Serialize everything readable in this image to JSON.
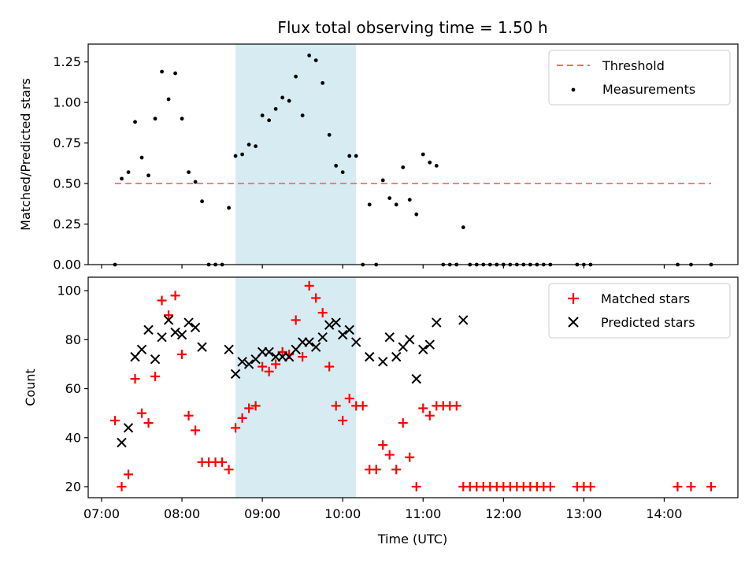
{
  "chart_data": [
    {
      "type": "scatter",
      "title": "Flux total observing time = 1.50 h",
      "xlabel": "",
      "ylabel": "Matched/Predicted stars",
      "ylim": [
        0,
        1.36
      ],
      "yticks": [
        0.0,
        0.25,
        0.5,
        0.75,
        1.0,
        1.25
      ],
      "ytick_labels": [
        "0.00",
        "0.25",
        "0.50",
        "0.75",
        "1.00",
        "1.25"
      ],
      "legend_position": "top-right",
      "shaded_region": {
        "x_start": "08:40",
        "x_end": "10:10",
        "color": "#add8e6"
      },
      "threshold": {
        "name": "Threshold",
        "value": 0.5,
        "x_start": "07:10",
        "x_end": "14:35",
        "color": "#ff6666"
      },
      "series": [
        {
          "name": "Measurements",
          "color": "#000000",
          "points": [
            [
              "07:10",
              0.0
            ],
            [
              "07:15",
              0.53
            ],
            [
              "07:20",
              0.57
            ],
            [
              "07:25",
              0.88
            ],
            [
              "07:30",
              0.66
            ],
            [
              "07:35",
              0.55
            ],
            [
              "07:40",
              0.9
            ],
            [
              "07:45",
              1.19
            ],
            [
              "07:50",
              1.02
            ],
            [
              "07:55",
              1.18
            ],
            [
              "08:00",
              0.9
            ],
            [
              "08:05",
              0.57
            ],
            [
              "08:10",
              0.51
            ],
            [
              "08:15",
              0.39
            ],
            [
              "08:20",
              0.0
            ],
            [
              "08:25",
              0.0
            ],
            [
              "08:30",
              0.0
            ],
            [
              "08:35",
              0.35
            ],
            [
              "08:40",
              0.67
            ],
            [
              "08:45",
              0.68
            ],
            [
              "08:50",
              0.74
            ],
            [
              "08:55",
              0.73
            ],
            [
              "09:00",
              0.92
            ],
            [
              "09:05",
              0.89
            ],
            [
              "09:10",
              0.96
            ],
            [
              "09:15",
              1.03
            ],
            [
              "09:20",
              1.01
            ],
            [
              "09:25",
              1.16
            ],
            [
              "09:30",
              0.92
            ],
            [
              "09:35",
              1.29
            ],
            [
              "09:40",
              1.26
            ],
            [
              "09:45",
              1.12
            ],
            [
              "09:50",
              0.8
            ],
            [
              "09:55",
              0.61
            ],
            [
              "10:00",
              0.57
            ],
            [
              "10:05",
              0.67
            ],
            [
              "10:10",
              0.67
            ],
            [
              "10:15",
              0.0
            ],
            [
              "10:20",
              0.37
            ],
            [
              "10:25",
              0.0
            ],
            [
              "10:30",
              0.52
            ],
            [
              "10:35",
              0.41
            ],
            [
              "10:40",
              0.37
            ],
            [
              "10:45",
              0.6
            ],
            [
              "10:50",
              0.4
            ],
            [
              "10:55",
              0.31
            ],
            [
              "11:00",
              0.68
            ],
            [
              "11:05",
              0.63
            ],
            [
              "11:10",
              0.61
            ],
            [
              "11:15",
              0.0
            ],
            [
              "11:20",
              0.0
            ],
            [
              "11:25",
              0.0
            ],
            [
              "11:30",
              0.23
            ],
            [
              "11:35",
              0.0
            ],
            [
              "11:40",
              0.0
            ],
            [
              "11:45",
              0.0
            ],
            [
              "11:50",
              0.0
            ],
            [
              "11:55",
              0.0
            ],
            [
              "12:00",
              0.0
            ],
            [
              "12:05",
              0.0
            ],
            [
              "12:10",
              0.0
            ],
            [
              "12:15",
              0.0
            ],
            [
              "12:20",
              0.0
            ],
            [
              "12:25",
              0.0
            ],
            [
              "12:30",
              0.0
            ],
            [
              "12:35",
              0.0
            ],
            [
              "12:55",
              0.0
            ],
            [
              "13:00",
              0.0
            ],
            [
              "13:05",
              0.0
            ],
            [
              "14:10",
              0.0
            ],
            [
              "14:20",
              0.0
            ],
            [
              "14:35",
              0.0
            ]
          ]
        }
      ]
    },
    {
      "type": "scatter",
      "title": "",
      "xlabel": "Time (UTC)",
      "ylabel": "Count",
      "ylim": [
        15.5,
        105.5
      ],
      "yticks": [
        20,
        40,
        60,
        80,
        100
      ],
      "ytick_labels": [
        "20",
        "40",
        "60",
        "80",
        "100"
      ],
      "xlim": [
        "06:50",
        "14:55"
      ],
      "xticks": [
        "07:00",
        "08:00",
        "09:00",
        "10:00",
        "11:00",
        "12:00",
        "13:00",
        "14:00"
      ],
      "legend_position": "top-right",
      "shaded_region": {
        "x_start": "08:40",
        "x_end": "10:10",
        "color": "#add8e6"
      },
      "series": [
        {
          "name": "Matched stars",
          "color": "#ff0000",
          "marker": "plus",
          "points": [
            [
              "07:10",
              47
            ],
            [
              "07:15",
              20
            ],
            [
              "07:20",
              25
            ],
            [
              "07:25",
              64
            ],
            [
              "07:30",
              50
            ],
            [
              "07:35",
              46
            ],
            [
              "07:40",
              65
            ],
            [
              "07:45",
              96
            ],
            [
              "07:50",
              90
            ],
            [
              "07:55",
              98
            ],
            [
              "08:00",
              74
            ],
            [
              "08:05",
              49
            ],
            [
              "08:10",
              43
            ],
            [
              "08:15",
              30
            ],
            [
              "08:20",
              30
            ],
            [
              "08:25",
              30
            ],
            [
              "08:30",
              30
            ],
            [
              "08:35",
              27
            ],
            [
              "08:40",
              44
            ],
            [
              "08:45",
              48
            ],
            [
              "08:50",
              52
            ],
            [
              "08:55",
              53
            ],
            [
              "09:00",
              69
            ],
            [
              "09:05",
              67
            ],
            [
              "09:10",
              70
            ],
            [
              "09:15",
              75
            ],
            [
              "09:20",
              74
            ],
            [
              "09:25",
              88
            ],
            [
              "09:30",
              73
            ],
            [
              "09:35",
              102
            ],
            [
              "09:40",
              97
            ],
            [
              "09:45",
              91
            ],
            [
              "09:50",
              69
            ],
            [
              "09:55",
              53
            ],
            [
              "10:00",
              47
            ],
            [
              "10:05",
              56
            ],
            [
              "10:10",
              53
            ],
            [
              "10:15",
              53
            ],
            [
              "10:20",
              27
            ],
            [
              "10:25",
              27
            ],
            [
              "10:30",
              37
            ],
            [
              "10:35",
              33
            ],
            [
              "10:40",
              27
            ],
            [
              "10:45",
              46
            ],
            [
              "10:50",
              32
            ],
            [
              "10:55",
              20
            ],
            [
              "11:00",
              52
            ],
            [
              "11:05",
              49
            ],
            [
              "11:10",
              53
            ],
            [
              "11:15",
              53
            ],
            [
              "11:20",
              53
            ],
            [
              "11:25",
              53
            ],
            [
              "11:30",
              20
            ],
            [
              "11:35",
              20
            ],
            [
              "11:40",
              20
            ],
            [
              "11:45",
              20
            ],
            [
              "11:50",
              20
            ],
            [
              "11:55",
              20
            ],
            [
              "12:00",
              20
            ],
            [
              "12:05",
              20
            ],
            [
              "12:10",
              20
            ],
            [
              "12:15",
              20
            ],
            [
              "12:20",
              20
            ],
            [
              "12:25",
              20
            ],
            [
              "12:30",
              20
            ],
            [
              "12:35",
              20
            ],
            [
              "12:55",
              20
            ],
            [
              "13:00",
              20
            ],
            [
              "13:05",
              20
            ],
            [
              "14:10",
              20
            ],
            [
              "14:20",
              20
            ],
            [
              "14:35",
              20
            ]
          ]
        },
        {
          "name": "Predicted stars",
          "color": "#000000",
          "marker": "x",
          "points": [
            [
              "07:15",
              38
            ],
            [
              "07:20",
              44
            ],
            [
              "07:25",
              73
            ],
            [
              "07:30",
              76
            ],
            [
              "07:35",
              84
            ],
            [
              "07:40",
              72
            ],
            [
              "07:45",
              81
            ],
            [
              "07:50",
              88
            ],
            [
              "07:55",
              83
            ],
            [
              "08:00",
              82
            ],
            [
              "08:05",
              87
            ],
            [
              "08:10",
              85
            ],
            [
              "08:15",
              77
            ],
            [
              "08:35",
              76
            ],
            [
              "08:40",
              66
            ],
            [
              "08:45",
              71
            ],
            [
              "08:50",
              70
            ],
            [
              "08:55",
              72
            ],
            [
              "09:00",
              75
            ],
            [
              "09:05",
              75
            ],
            [
              "09:10",
              73
            ],
            [
              "09:15",
              73
            ],
            [
              "09:20",
              73
            ],
            [
              "09:25",
              76
            ],
            [
              "09:30",
              79
            ],
            [
              "09:35",
              79
            ],
            [
              "09:40",
              77
            ],
            [
              "09:45",
              81
            ],
            [
              "09:50",
              86
            ],
            [
              "09:55",
              87
            ],
            [
              "10:00",
              82
            ],
            [
              "10:05",
              84
            ],
            [
              "10:10",
              79
            ],
            [
              "10:20",
              73
            ],
            [
              "10:30",
              71
            ],
            [
              "10:35",
              81
            ],
            [
              "10:40",
              73
            ],
            [
              "10:45",
              77
            ],
            [
              "10:50",
              80
            ],
            [
              "10:55",
              64
            ],
            [
              "11:00",
              76
            ],
            [
              "11:05",
              78
            ],
            [
              "11:10",
              87
            ],
            [
              "11:30",
              88
            ]
          ]
        }
      ]
    }
  ]
}
